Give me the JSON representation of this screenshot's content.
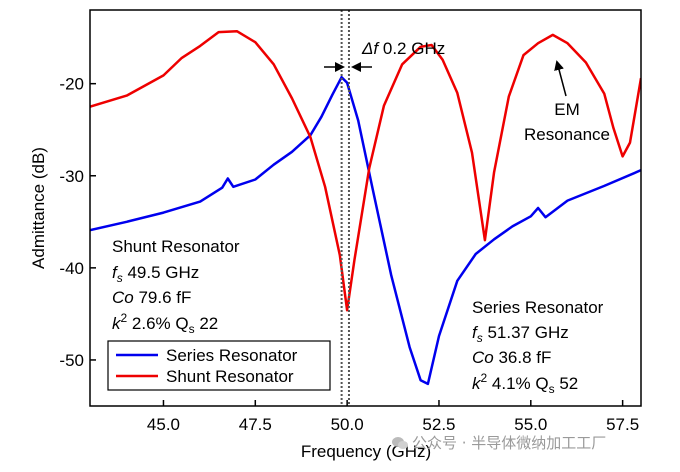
{
  "chart_data": {
    "type": "line",
    "xlabel": "Frequency (GHz)",
    "ylabel": "Admittance (dB)",
    "xlim": [
      43.0,
      58.0
    ],
    "ylim": [
      -55.0,
      -12.0
    ],
    "x_ticks": [
      "45.0",
      "47.5",
      "50.0",
      "52.5",
      "55.0",
      "57.5"
    ],
    "y_ticks": [
      "-20",
      "-30",
      "-40",
      "-50"
    ],
    "grid": false,
    "legend_position": "lower-left",
    "series": [
      {
        "name": "Series Resonator",
        "color": "#0000ee",
        "points": [
          [
            43.0,
            -35.9
          ],
          [
            44.0,
            -35.0
          ],
          [
            45.0,
            -34.0
          ],
          [
            46.0,
            -32.8
          ],
          [
            46.6,
            -31.3
          ],
          [
            46.75,
            -30.3
          ],
          [
            46.9,
            -31.2
          ],
          [
            47.5,
            -30.4
          ],
          [
            48.0,
            -28.8
          ],
          [
            48.5,
            -27.4
          ],
          [
            49.0,
            -25.6
          ],
          [
            49.3,
            -23.6
          ],
          [
            49.6,
            -21.2
          ],
          [
            49.85,
            -19.3
          ],
          [
            50.0,
            -19.9
          ],
          [
            50.3,
            -24.0
          ],
          [
            50.7,
            -31.5
          ],
          [
            51.2,
            -40.8
          ],
          [
            51.7,
            -48.6
          ],
          [
            52.0,
            -52.2
          ],
          [
            52.2,
            -52.6
          ],
          [
            52.5,
            -47.4
          ],
          [
            53.0,
            -41.4
          ],
          [
            53.5,
            -38.5
          ],
          [
            54.0,
            -36.9
          ],
          [
            54.5,
            -35.5
          ],
          [
            55.0,
            -34.4
          ],
          [
            55.2,
            -33.5
          ],
          [
            55.4,
            -34.5
          ],
          [
            56.0,
            -32.7
          ],
          [
            57.0,
            -31.1
          ],
          [
            58.0,
            -29.4
          ]
        ]
      },
      {
        "name": "Shunt Resonator",
        "color": "#ee0000",
        "points": [
          [
            43.0,
            -22.5
          ],
          [
            44.0,
            -21.3
          ],
          [
            45.0,
            -19.1
          ],
          [
            45.5,
            -17.2
          ],
          [
            46.0,
            -15.9
          ],
          [
            46.5,
            -14.4
          ],
          [
            47.0,
            -14.3
          ],
          [
            47.5,
            -15.5
          ],
          [
            48.0,
            -17.9
          ],
          [
            48.5,
            -21.6
          ],
          [
            49.0,
            -25.8
          ],
          [
            49.4,
            -31.2
          ],
          [
            49.8,
            -38.6
          ],
          [
            50.0,
            -44.6
          ],
          [
            50.2,
            -39.1
          ],
          [
            50.6,
            -29.2
          ],
          [
            51.0,
            -22.4
          ],
          [
            51.5,
            -17.9
          ],
          [
            52.0,
            -16.0
          ],
          [
            52.3,
            -15.8
          ],
          [
            52.6,
            -17.4
          ],
          [
            53.0,
            -21.0
          ],
          [
            53.4,
            -27.5
          ],
          [
            53.75,
            -37.0
          ],
          [
            54.0,
            -29.6
          ],
          [
            54.4,
            -21.4
          ],
          [
            54.8,
            -16.9
          ],
          [
            55.2,
            -15.6
          ],
          [
            55.6,
            -14.7
          ],
          [
            56.0,
            -15.6
          ],
          [
            56.5,
            -17.7
          ],
          [
            57.0,
            -21.1
          ],
          [
            57.25,
            -24.8
          ],
          [
            57.5,
            -27.9
          ],
          [
            57.7,
            -26.4
          ],
          [
            58.0,
            -19.4
          ]
        ]
      }
    ],
    "markers": [
      49.85,
      50.05
    ],
    "annotations": {
      "delta_f_symbol": "Δf",
      "delta_f_value": " 0.2 GHz",
      "em_line1": "EM",
      "em_line2": "Resonance",
      "shunt": {
        "title": "Shunt Resonator",
        "fs_sym": "f",
        "fs_sub": "s",
        "fs_val": " 49.5 GHz",
        "co_sym": "Co",
        "co_val": " 79.6 fF",
        "k_sym": "k",
        "k_sup": "2",
        "k_val": " 2.6% Q",
        "q_sub": "s",
        "q_val": " 22"
      },
      "series": {
        "title": "Series Resonator",
        "fs_sym": "f",
        "fs_sub": "s",
        "fs_val": " 51.37 GHz",
        "co_sym": "Co",
        "co_val": " 36.8 fF",
        "k_sym": "k",
        "k_sup": "2",
        "k_val": " 4.1% Q",
        "q_sub": "s",
        "q_val": " 52"
      }
    }
  },
  "watermark": {
    "text": "公众号 · 半导体微纳加工工厂"
  }
}
